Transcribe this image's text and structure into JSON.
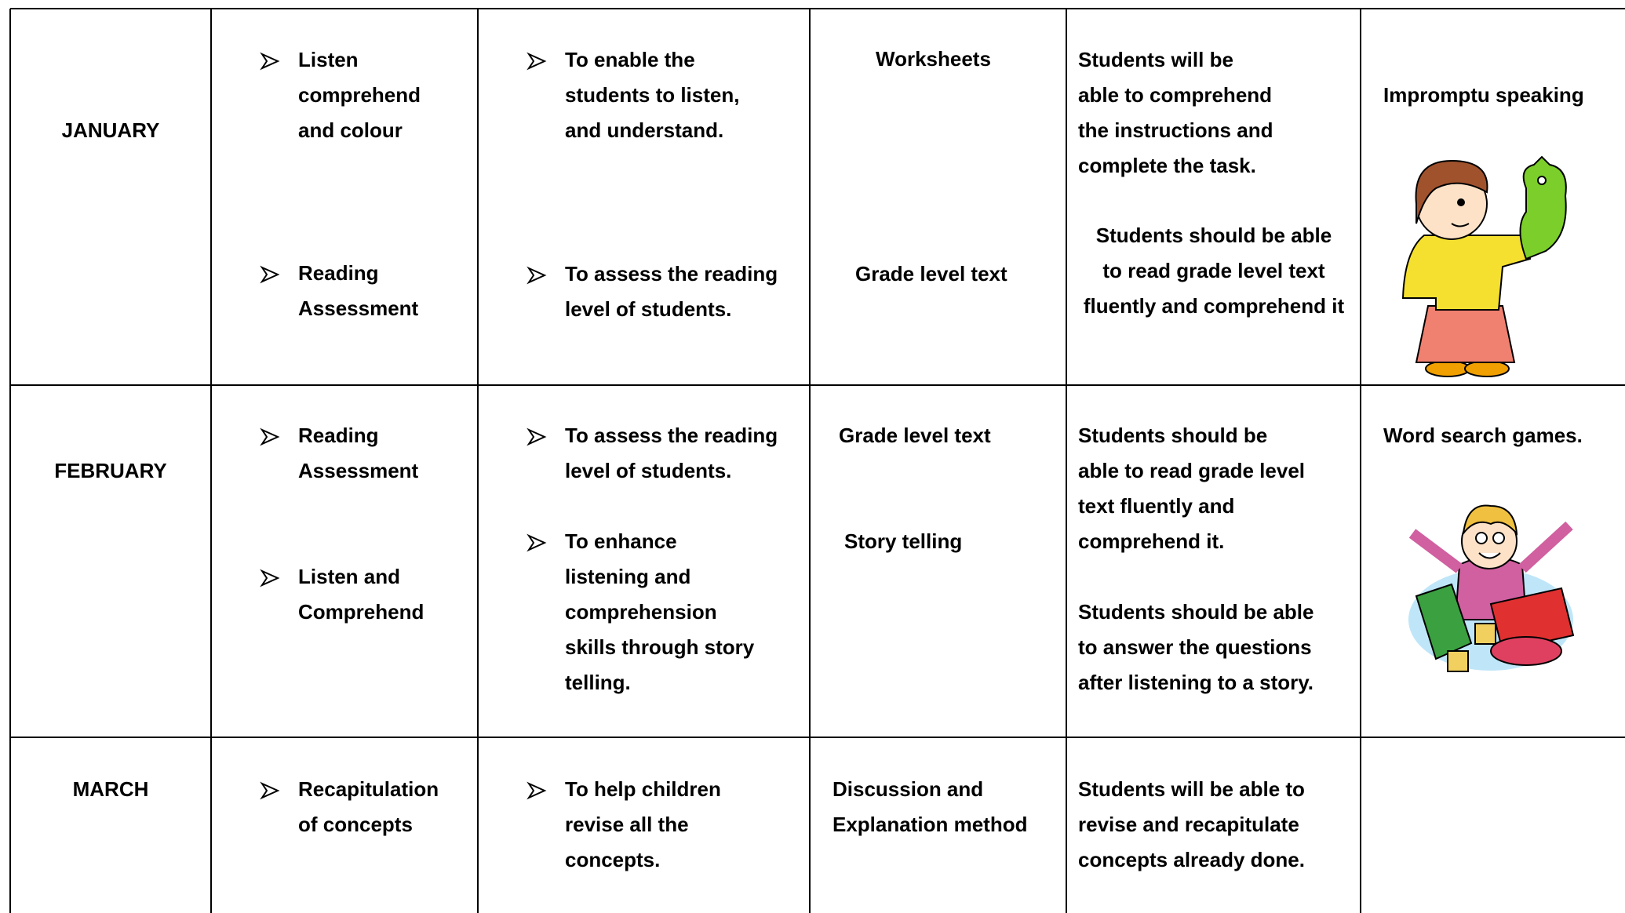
{
  "table": {
    "rows": [
      {
        "month": "JANUARY",
        "topics": [
          [
            "Listen",
            "comprehend",
            "and colour"
          ],
          [
            "Reading",
            "Assessment"
          ]
        ],
        "objectives": [
          [
            "To enable the",
            "students to listen,",
            "and understand."
          ],
          [
            "To assess the reading",
            "level of students."
          ]
        ],
        "resources": [
          [
            "Worksheets"
          ],
          [
            "Grade level text"
          ]
        ],
        "outcomes": [
          [
            "Students will be",
            "able to comprehend",
            "the instructions and",
            "complete the task."
          ],
          [
            "Students should be able",
            "to read grade level text",
            "fluently and comprehend it"
          ]
        ],
        "activity": [
          "Impromptu speaking"
        ]
      },
      {
        "month": "FEBRUARY",
        "topics": [
          [
            "Reading",
            "Assessment"
          ],
          [
            "Listen and",
            "Comprehend"
          ]
        ],
        "objectives": [
          [
            "To assess the reading",
            "level of students."
          ],
          [
            "To enhance",
            "listening and",
            "comprehension",
            "skills through story",
            "telling."
          ]
        ],
        "resources": [
          [
            "Grade level text"
          ],
          [
            "Story telling"
          ]
        ],
        "outcomes": [
          [
            "Students should be",
            "able to read grade level",
            "text fluently and",
            "comprehend it."
          ],
          [
            "Students should be able",
            "to answer the questions",
            "after listening to a story."
          ]
        ],
        "activity": [
          "Word search games."
        ]
      },
      {
        "month": "MARCH",
        "topics": [
          [
            "Recapitulation",
            "of concepts"
          ]
        ],
        "objectives": [
          [
            "To help children",
            "revise all the",
            "concepts."
          ]
        ],
        "resources": [
          [
            "Discussion and",
            "Explanation method"
          ]
        ],
        "outcomes": [
          [
            "Students will be able to",
            "revise  and  recapitulate",
            "concepts already done."
          ]
        ]
      }
    ]
  }
}
